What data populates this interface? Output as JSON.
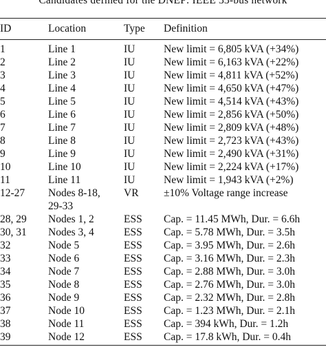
{
  "caption": "Candidates defined for the DNEP: IEEE 33-bus network",
  "table": {
    "headers": {
      "id": "ID",
      "location": "Location",
      "type": "Type",
      "definition": "Definition"
    },
    "rows": [
      {
        "id": "1",
        "location": "Line 1",
        "type": "IU",
        "definition": "New limit = 6,805 kVA (+34%)"
      },
      {
        "id": "2",
        "location": "Line 2",
        "type": "IU",
        "definition": "New limit = 6,163 kVA (+22%)"
      },
      {
        "id": "3",
        "location": "Line 3",
        "type": "IU",
        "definition": "New limit = 4,811 kVA (+52%)"
      },
      {
        "id": "4",
        "location": "Line 4",
        "type": "IU",
        "definition": "New limit = 4,650 kVA (+47%)"
      },
      {
        "id": "5",
        "location": "Line 5",
        "type": "IU",
        "definition": "New limit = 4,514 kVA (+43%)"
      },
      {
        "id": "6",
        "location": "Line 6",
        "type": "IU",
        "definition": "New limit = 2,856 kVA (+50%)"
      },
      {
        "id": "7",
        "location": "Line 7",
        "type": "IU",
        "definition": "New limit = 2,809 kVA (+48%)"
      },
      {
        "id": "8",
        "location": "Line 8",
        "type": "IU",
        "definition": "New limit = 2,723 kVA (+43%)"
      },
      {
        "id": "9",
        "location": "Line 9",
        "type": "IU",
        "definition": "New limit = 2,490 kVA (+31%)"
      },
      {
        "id": "10",
        "location": "Line 10",
        "type": "IU",
        "definition": "New limit = 2,224 kVA (+17%)"
      },
      {
        "id": "11",
        "location": "Line 11",
        "type": "IU",
        "definition": "New limit = 1,943 kVA (+2%)"
      },
      {
        "id": "12-27",
        "location": "Nodes 8-18,",
        "type": "VR",
        "definition": "±10% Voltage range increase"
      },
      {
        "id": "",
        "location": "29-33",
        "type": "",
        "definition": ""
      },
      {
        "id": "28, 29",
        "location": "Nodes 1, 2",
        "type": "ESS",
        "definition": "Cap. = 11.45 MWh, Dur. = 6.6h"
      },
      {
        "id": "30, 31",
        "location": "Nodes 3, 4",
        "type": "ESS",
        "definition": "Cap. = 5.78 MWh, Dur. = 3.5h"
      },
      {
        "id": "32",
        "location": "Node 5",
        "type": "ESS",
        "definition": "Cap. = 3.95 MWh, Dur. = 2.6h"
      },
      {
        "id": "33",
        "location": "Node 6",
        "type": "ESS",
        "definition": "Cap. = 3.16 MWh, Dur. = 2.3h"
      },
      {
        "id": "34",
        "location": "Node 7",
        "type": "ESS",
        "definition": "Cap. = 2.88 MWh, Dur. = 3.0h"
      },
      {
        "id": "35",
        "location": "Node 8",
        "type": "ESS",
        "definition": "Cap. = 2.76 MWh, Dur. = 3.0h"
      },
      {
        "id": "36",
        "location": "Node 9",
        "type": "ESS",
        "definition": "Cap. = 2.32 MWh, Dur. = 2.8h"
      },
      {
        "id": "37",
        "location": "Node 10",
        "type": "ESS",
        "definition": "Cap. = 1.23 MWh, Dur. = 2.1h"
      },
      {
        "id": "38",
        "location": "Node 11",
        "type": "ESS",
        "definition": "Cap. = 394 kWh, Dur. = 1.2h"
      },
      {
        "id": "39",
        "location": "Node 12",
        "type": "ESS",
        "definition": "Cap. = 17.8 kWh, Dur. = 0.4h"
      }
    ]
  }
}
